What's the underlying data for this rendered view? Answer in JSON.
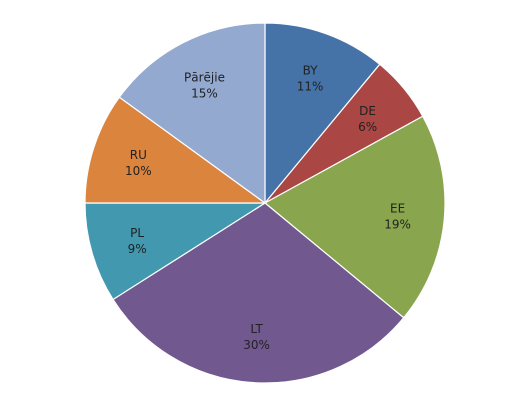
{
  "chart_data": {
    "type": "pie",
    "slices": [
      {
        "label": "BY",
        "value": 11,
        "pct": "11%",
        "color": "#4572a7"
      },
      {
        "label": "DE",
        "value": 6,
        "pct": "6%",
        "color": "#aa4643"
      },
      {
        "label": "EE",
        "value": 19,
        "pct": "19%",
        "color": "#89a54e"
      },
      {
        "label": "LT",
        "value": 30,
        "pct": "30%",
        "color": "#71588f"
      },
      {
        "label": "PL",
        "value": 9,
        "pct": "9%",
        "color": "#4198af"
      },
      {
        "label": "RU",
        "value": 10,
        "pct": "10%",
        "color": "#db843d"
      },
      {
        "label": "Pārējie",
        "value": 15,
        "pct": "15%",
        "color": "#93a9cf"
      }
    ],
    "start_angle": "12 o'clock",
    "direction": "clockwise",
    "legend": "none"
  }
}
